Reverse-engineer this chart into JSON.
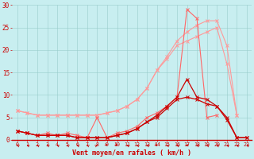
{
  "x": [
    0,
    1,
    2,
    3,
    4,
    5,
    6,
    7,
    8,
    9,
    10,
    11,
    12,
    13,
    14,
    15,
    16,
    17,
    18,
    19,
    20,
    21,
    22,
    23
  ],
  "line_upper1": [
    6.5,
    6.0,
    5.5,
    5.5,
    5.5,
    5.5,
    5.5,
    5.5,
    5.5,
    6.0,
    6.5,
    7.5,
    9.0,
    11.5,
    15.5,
    18.0,
    21.0,
    22.0,
    23.0,
    24.0,
    25.0,
    17.0,
    5.5,
    null
  ],
  "line_upper2": [
    6.5,
    6.0,
    5.5,
    5.5,
    5.5,
    5.5,
    5.5,
    5.5,
    5.5,
    6.0,
    6.5,
    7.5,
    9.0,
    11.5,
    15.5,
    18.5,
    22.0,
    24.0,
    25.5,
    26.5,
    26.5,
    21.0,
    5.5,
    null
  ],
  "line_mid": [
    2.0,
    1.5,
    1.0,
    1.5,
    1.0,
    1.5,
    1.0,
    0.5,
    5.0,
    0.5,
    1.5,
    2.0,
    3.0,
    5.0,
    6.0,
    7.5,
    9.5,
    29.0,
    27.0,
    5.0,
    5.5,
    null,
    null,
    null
  ],
  "line_lower1": [
    2.0,
    1.5,
    1.0,
    1.0,
    1.0,
    1.0,
    0.5,
    0.5,
    0.5,
    0.5,
    1.0,
    1.5,
    2.5,
    4.0,
    5.5,
    7.5,
    9.5,
    13.5,
    9.5,
    9.0,
    7.5,
    5.0,
    0.5,
    0.5
  ],
  "line_lower2": [
    2.0,
    1.5,
    1.0,
    1.0,
    1.0,
    1.0,
    0.5,
    0.5,
    0.5,
    0.5,
    1.0,
    1.5,
    2.5,
    4.0,
    5.0,
    7.0,
    9.0,
    9.5,
    9.0,
    8.0,
    7.5,
    4.5,
    0.5,
    0.5
  ],
  "bg_color": "#c8eef0",
  "color_light": "#ff9999",
  "color_mid": "#ff6666",
  "color_dark": "#cc0000",
  "arrow_color": "#cc0000",
  "xlabel": "Vent moyen/en rafales ( km/h )",
  "ylim": [
    0,
    30
  ],
  "xlim": [
    -0.5,
    23.5
  ],
  "yticks": [
    0,
    5,
    10,
    15,
    20,
    25,
    30
  ],
  "xticks": [
    0,
    1,
    2,
    3,
    4,
    5,
    6,
    7,
    8,
    9,
    10,
    11,
    12,
    13,
    14,
    15,
    16,
    17,
    18,
    19,
    20,
    21,
    22,
    23
  ],
  "arrow_dirs": [
    225,
    225,
    225,
    225,
    225,
    225,
    225,
    225,
    135,
    45,
    45,
    225,
    225,
    225,
    45,
    225,
    225,
    270,
    225,
    225,
    225,
    225,
    225,
    225
  ]
}
